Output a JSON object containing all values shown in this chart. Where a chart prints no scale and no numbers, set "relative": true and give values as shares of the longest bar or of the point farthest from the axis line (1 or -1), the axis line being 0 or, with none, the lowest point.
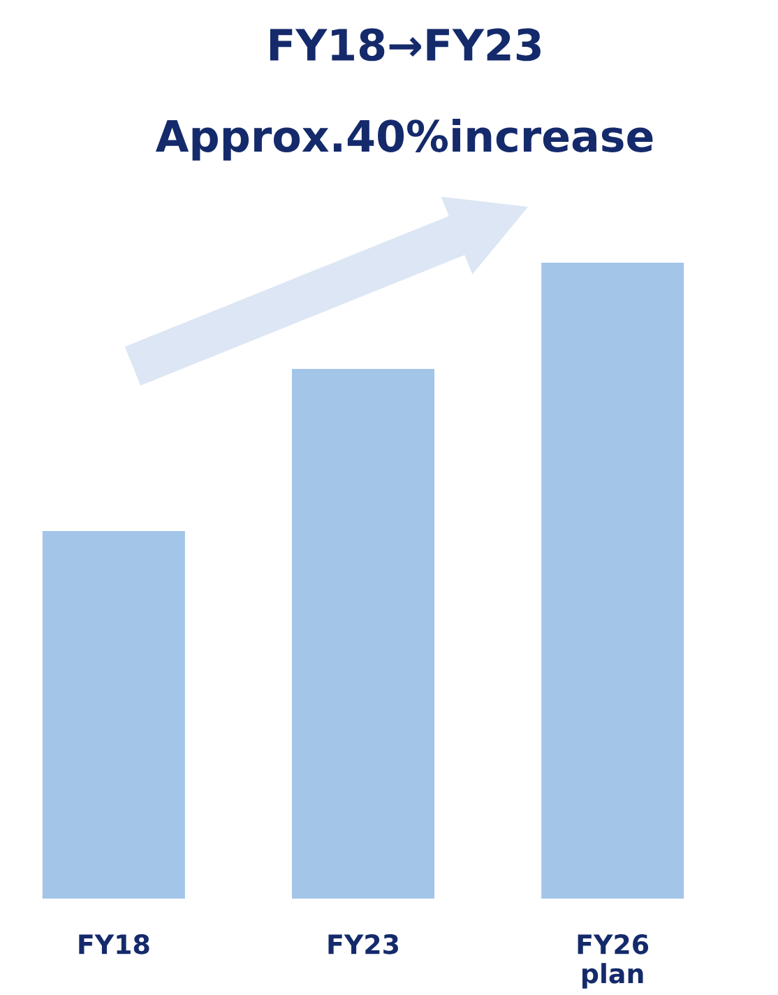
{
  "chart_data": {
    "type": "bar",
    "title": "FY18→FY23",
    "subtitle": "Approx.**40**%increase",
    "categories": [
      "FY18",
      "FY23",
      "FY26 plan"
    ],
    "values": [
      0.578,
      0.833,
      1
    ],
    "color": "#a3c5e8",
    "relative": true
  }
}
